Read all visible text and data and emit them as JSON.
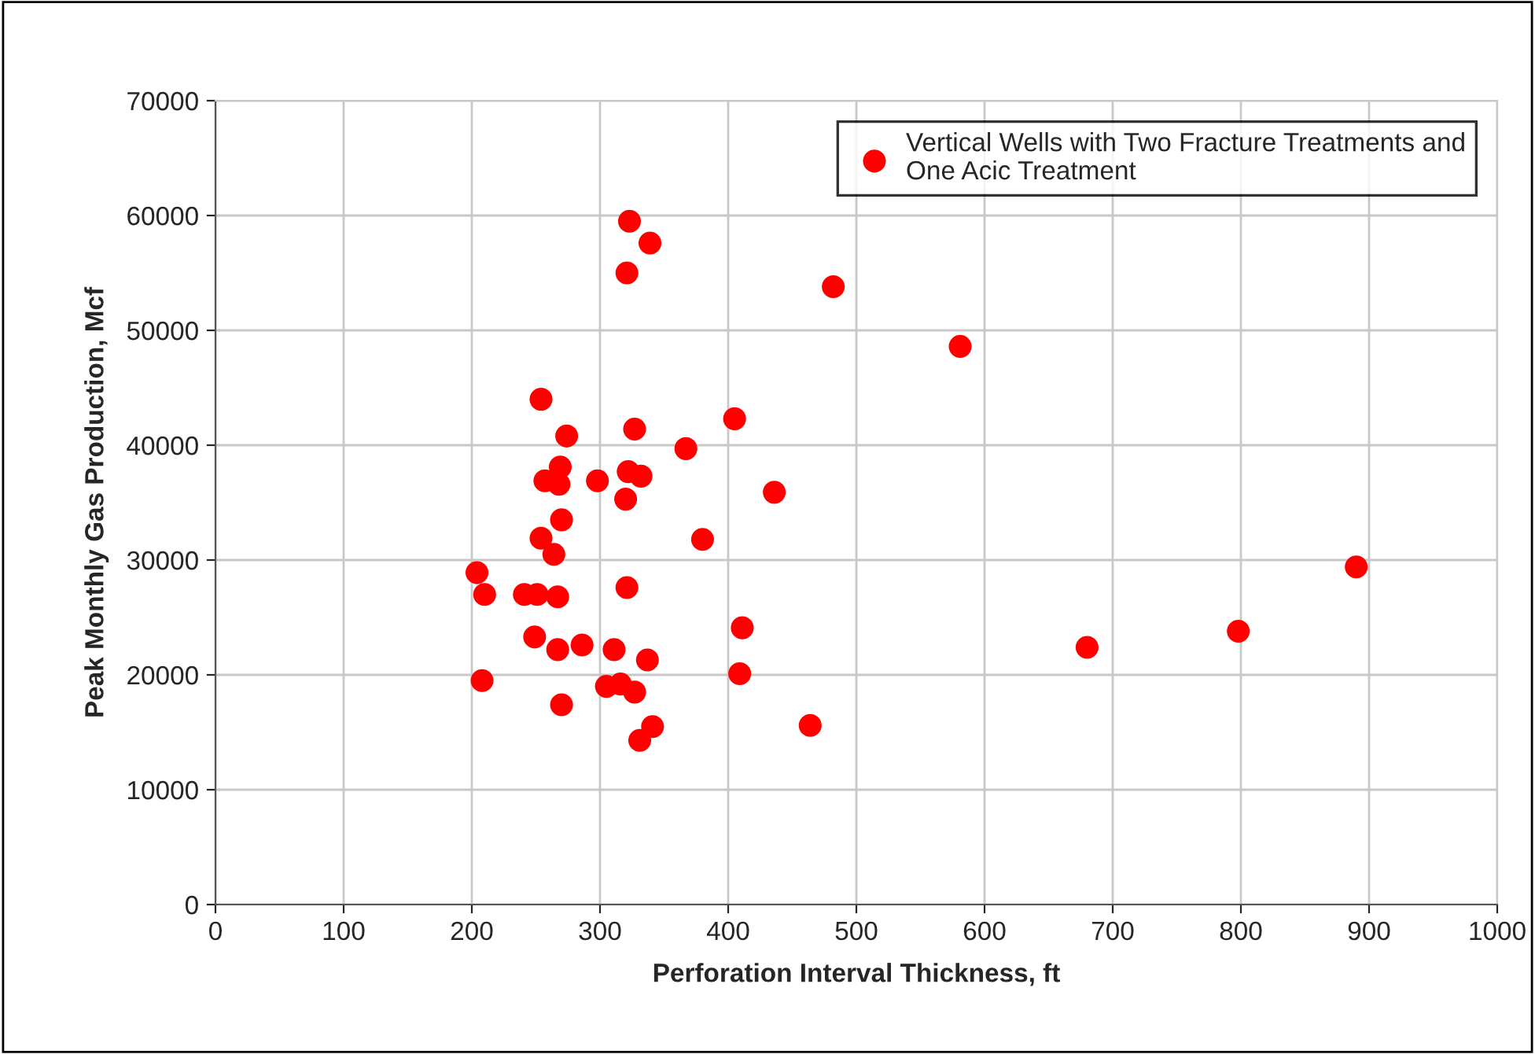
{
  "chart_data": {
    "type": "scatter",
    "xlabel": "Perforation Interval Thickness, ft",
    "ylabel": "Peak Monthly Gas Production, Mcf",
    "series": [
      {
        "name": "Vertical Wells with Two Fracture Treatments and\nOne Acic Treatment",
        "color": "#ff0000",
        "x": [
          323,
          339,
          321,
          254,
          274,
          327,
          367,
          405,
          269,
          257,
          268,
          298,
          322,
          332,
          320,
          270,
          254,
          264,
          380,
          204,
          210,
          241,
          251,
          267,
          321,
          249,
          267,
          286,
          311,
          337,
          208,
          305,
          316,
          327,
          270,
          331,
          341,
          482,
          581,
          436,
          411,
          409,
          464,
          680,
          798,
          890
        ],
        "values": [
          59500,
          57600,
          55000,
          44000,
          40800,
          41400,
          39700,
          42300,
          38100,
          36900,
          36600,
          36900,
          37700,
          37300,
          35300,
          33500,
          31900,
          30500,
          31800,
          28900,
          27000,
          27000,
          27000,
          26800,
          27600,
          23300,
          22200,
          22600,
          22200,
          21300,
          19500,
          19000,
          19200,
          18500,
          17400,
          14300,
          15500,
          53800,
          48600,
          35900,
          24100,
          20100,
          15600,
          22400,
          23800,
          29400
        ]
      }
    ],
    "xlim": [
      0,
      1000
    ],
    "xticks": [
      0,
      100,
      200,
      300,
      400,
      500,
      600,
      700,
      800,
      900,
      1000
    ],
    "ylim": [
      0,
      70000
    ],
    "yticks": [
      0,
      10000,
      20000,
      30000,
      40000,
      50000,
      60000,
      70000
    ],
    "grid": true,
    "legend": "top right",
    "marker": "circle"
  }
}
